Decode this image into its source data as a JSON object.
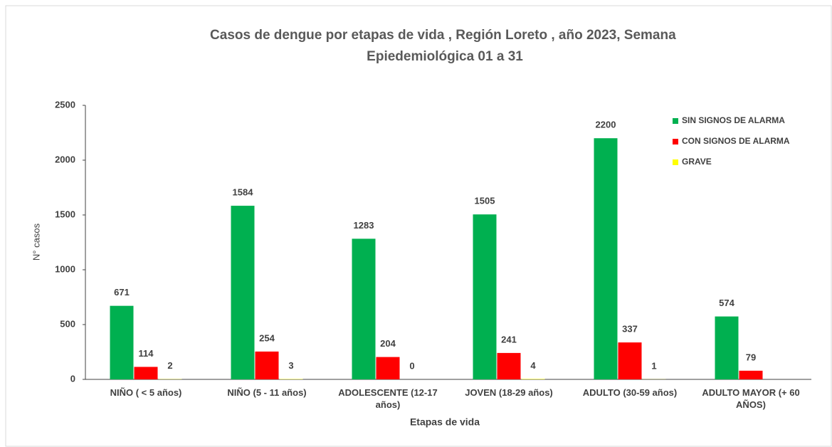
{
  "chart_data": {
    "type": "bar",
    "title": "Casos de dengue por etapas de vida , Región Loreto , año 2023, Semana Epiedemiológica  01 a 31",
    "xlabel": "Etapas de vida",
    "ylabel": "N° casos",
    "categories": [
      "NIÑO ( < 5 años)",
      "NIÑO (5 - 11 años)",
      "ADOLESCENTE (12-17 años)",
      "JOVEN (18-29 años)",
      "ADULTO (30-59 años)",
      "ADULTO MAYOR (+ 60 AÑOS)"
    ],
    "series": [
      {
        "name": "SIN SIGNOS DE ALARMA",
        "color": "#00b050",
        "values": [
          671,
          1584,
          1283,
          1505,
          2200,
          574
        ]
      },
      {
        "name": "CON SIGNOS DE ALARMA",
        "color": "#ff0000",
        "values": [
          114,
          254,
          204,
          241,
          337,
          79
        ]
      },
      {
        "name": "GRAVE",
        "color": "#ffff00",
        "values": [
          2,
          3,
          0,
          4,
          1,
          null
        ]
      }
    ],
    "ylim": [
      0,
      2500
    ],
    "yticks": [
      0,
      500,
      1000,
      1500,
      2000,
      2500
    ],
    "grid": false,
    "legend": "upper right"
  }
}
